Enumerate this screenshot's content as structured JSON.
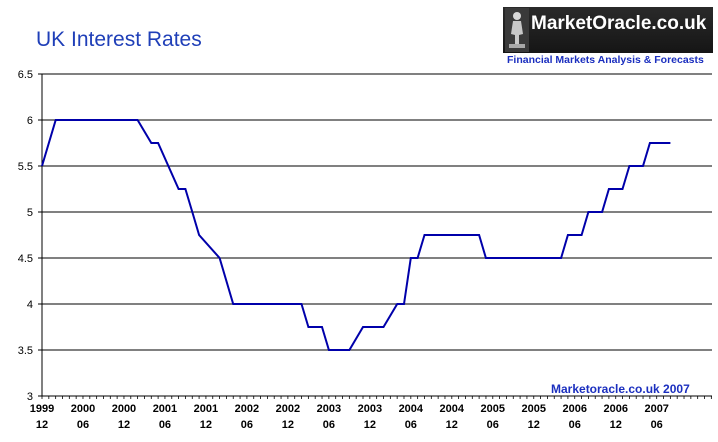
{
  "chart_data": {
    "type": "line",
    "title": "UK Interest Rates",
    "xlabel": "",
    "ylabel": "",
    "ylim": [
      3,
      6.5
    ],
    "yticks": [
      "3",
      "3.5",
      "4",
      "4.5",
      "5",
      "5.5",
      "6",
      "6.5"
    ],
    "grid": true,
    "xticks": [
      [
        "1999",
        "12"
      ],
      [
        "2000",
        "06"
      ],
      [
        "2000",
        "12"
      ],
      [
        "2001",
        "06"
      ],
      [
        "2001",
        "12"
      ],
      [
        "2002",
        "06"
      ],
      [
        "2002",
        "12"
      ],
      [
        "2003",
        "06"
      ],
      [
        "2003",
        "12"
      ],
      [
        "2004",
        "06"
      ],
      [
        "2004",
        "12"
      ],
      [
        "2005",
        "06"
      ],
      [
        "2005",
        "12"
      ],
      [
        "2006",
        "06"
      ],
      [
        "2006",
        "12"
      ],
      [
        "2007",
        "06"
      ]
    ],
    "series": [
      {
        "color": "#0000aa",
        "x": [
          "1999-12",
          "2000-02",
          "2001-02",
          "2001-04",
          "2001-05",
          "2001-08",
          "2001-09",
          "2001-10",
          "2001-11",
          "2002-02",
          "2002-04",
          "2003-02",
          "2003-03",
          "2003-05",
          "2003-06",
          "2003-09",
          "2003-11",
          "2004-02",
          "2004-04",
          "2004-05",
          "2004-06",
          "2004-07",
          "2004-08",
          "2004-09",
          "2005-04",
          "2005-05",
          "2005-08",
          "2006-04",
          "2006-05",
          "2006-07",
          "2006-08",
          "2006-10",
          "2006-11",
          "2007-01",
          "2007-02",
          "2007-04",
          "2007-05",
          "2007-06",
          "2007-07",
          "2007-08"
        ],
        "y": [
          5.5,
          6.0,
          6.0,
          5.75,
          5.75,
          5.25,
          5.25,
          5.0,
          4.75,
          4.5,
          4.0,
          4.0,
          3.75,
          3.75,
          3.5,
          3.5,
          3.75,
          3.75,
          4.0,
          4.0,
          4.5,
          4.5,
          4.75,
          4.75,
          4.75,
          4.5,
          4.5,
          4.5,
          4.75,
          4.75,
          5.0,
          5.0,
          5.25,
          5.25,
          5.5,
          5.5,
          5.75,
          5.75,
          5.75,
          5.75
        ]
      }
    ],
    "annotation": "Marketoracle.co.uk 2007"
  },
  "logo": {
    "name": "MarketOracle.co.uk",
    "tagline": "Financial Markets Analysis & Forecasts"
  },
  "colors": {
    "title": "#1f3fb8",
    "line": "#0000aa",
    "grid": "#000000",
    "logo_bg": "#1a1a1a"
  }
}
